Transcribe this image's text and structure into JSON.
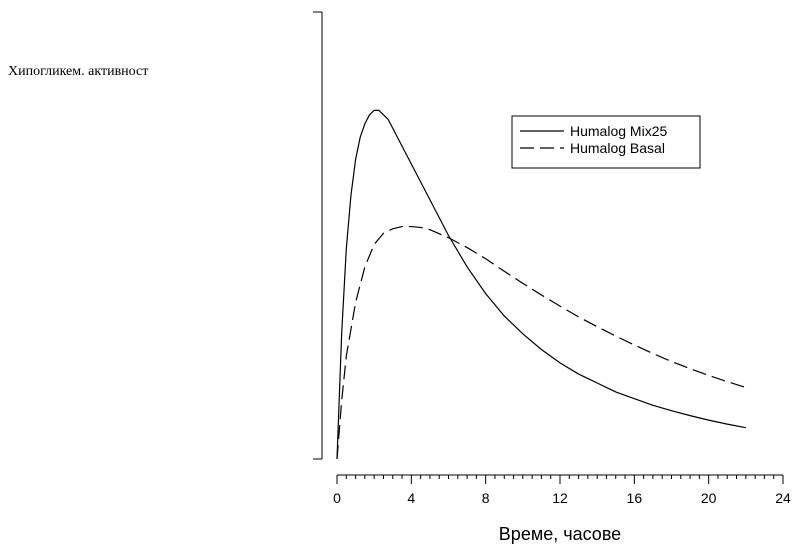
{
  "chart_data": {
    "type": "line",
    "title": "",
    "xlabel": "Време, часове",
    "ylabel": "Хипогликем. активност",
    "xlim": [
      0,
      24
    ],
    "ylim": [
      0,
      1
    ],
    "x_ticks": [
      0,
      4,
      8,
      12,
      16,
      20,
      24
    ],
    "x_minor_step": 0.5,
    "y_tick_labels": "none",
    "grid": false,
    "legend_position": "top-right",
    "series": [
      {
        "name": "Humalog Mix25",
        "style": "solid",
        "color": "#000000",
        "x": [
          0,
          0.25,
          0.5,
          0.75,
          1,
          1.25,
          1.5,
          1.75,
          2,
          2.25,
          2.5,
          2.75,
          3,
          3.5,
          4,
          5,
          6,
          7,
          8,
          9,
          10,
          11,
          12,
          13,
          14,
          15,
          16,
          17,
          18,
          19,
          20,
          21,
          22
        ],
        "y": [
          0,
          0.28,
          0.47,
          0.59,
          0.67,
          0.72,
          0.75,
          0.77,
          0.78,
          0.78,
          0.77,
          0.76,
          0.74,
          0.7,
          0.66,
          0.58,
          0.5,
          0.43,
          0.37,
          0.32,
          0.28,
          0.245,
          0.215,
          0.19,
          0.17,
          0.15,
          0.135,
          0.12,
          0.108,
          0.097,
          0.087,
          0.078,
          0.07
        ]
      },
      {
        "name": "Humalog Basal",
        "style": "dashed",
        "color": "#000000",
        "x": [
          0,
          0.25,
          0.5,
          1,
          1.5,
          2,
          2.5,
          3,
          3.5,
          4,
          4.5,
          5,
          6,
          7,
          8,
          9,
          10,
          11,
          12,
          13,
          14,
          15,
          16,
          17,
          18,
          19,
          20,
          21,
          22
        ],
        "y": [
          0,
          0.13,
          0.23,
          0.35,
          0.43,
          0.48,
          0.505,
          0.515,
          0.52,
          0.52,
          0.518,
          0.513,
          0.495,
          0.473,
          0.448,
          0.42,
          0.393,
          0.367,
          0.342,
          0.318,
          0.296,
          0.275,
          0.255,
          0.236,
          0.218,
          0.202,
          0.187,
          0.173,
          0.16
        ]
      }
    ]
  }
}
